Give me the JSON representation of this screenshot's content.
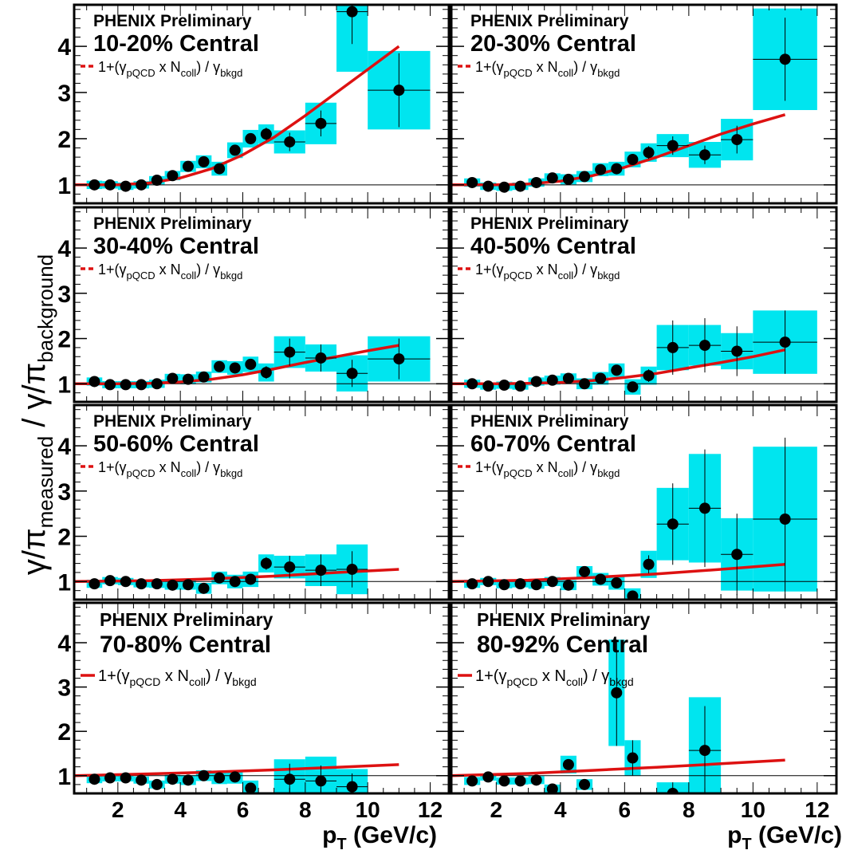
{
  "figure": {
    "ylabel_parts": [
      "γ/π",
      "measured",
      " / ",
      "γ/π",
      "background"
    ],
    "xlabel_parts": [
      "p",
      "T",
      " (GeV/c)"
    ],
    "x_ticks": [
      2,
      4,
      6,
      8,
      10,
      12
    ],
    "y_ticks": [
      1,
      2,
      3,
      4
    ],
    "legend_parts": [
      "1+(γ",
      "pQCD",
      " x N",
      "coll",
      ") / γ",
      "bkgd"
    ],
    "label_line1": "PHENIX Preliminary",
    "colors": {
      "data": "#000000",
      "systematic_box": "#00e5ef",
      "fit": "#dd1111",
      "unity_line": "#000000"
    }
  },
  "chart_data": [
    {
      "type": "scatter",
      "panel_title": "10-20% Central",
      "xlim": [
        0.6,
        12.6
      ],
      "ylim": [
        0.6,
        4.9
      ],
      "points": [
        [
          1.25,
          1.0,
          0.07,
          0.09
        ],
        [
          1.75,
          1.0,
          0.06,
          0.08
        ],
        [
          2.25,
          0.97,
          0.06,
          0.08
        ],
        [
          2.75,
          1.0,
          0.06,
          0.08
        ],
        [
          3.25,
          1.1,
          0.07,
          0.09
        ],
        [
          3.75,
          1.2,
          0.08,
          0.1
        ],
        [
          4.25,
          1.4,
          0.08,
          0.12
        ],
        [
          4.75,
          1.5,
          0.09,
          0.14
        ],
        [
          5.25,
          1.35,
          0.1,
          0.15
        ],
        [
          5.75,
          1.75,
          0.11,
          0.17
        ],
        [
          6.25,
          2.0,
          0.12,
          0.19
        ],
        [
          6.75,
          2.1,
          0.14,
          0.21
        ],
        [
          7.5,
          1.93,
          0.2,
          0.25
        ],
        [
          8.5,
          2.33,
          0.28,
          0.45
        ],
        [
          9.5,
          4.75,
          0.7,
          1.3
        ],
        [
          11.0,
          3.05,
          0.8,
          0.85
        ]
      ],
      "fit": [
        [
          0.6,
          1.0
        ],
        [
          2.0,
          1.0
        ],
        [
          3.0,
          1.04
        ],
        [
          4.0,
          1.15
        ],
        [
          5.0,
          1.35
        ],
        [
          6.0,
          1.65
        ],
        [
          7.0,
          2.03
        ],
        [
          8.0,
          2.5
        ],
        [
          9.0,
          3.0
        ],
        [
          10.0,
          3.5
        ],
        [
          11.0,
          4.0
        ]
      ]
    },
    {
      "type": "scatter",
      "panel_title": "20-30% Central",
      "xlim": [
        0.6,
        12.6
      ],
      "ylim": [
        0.6,
        4.9
      ],
      "points": [
        [
          1.25,
          1.05,
          0.07,
          0.09
        ],
        [
          1.75,
          0.97,
          0.06,
          0.08
        ],
        [
          2.25,
          0.95,
          0.06,
          0.08
        ],
        [
          2.75,
          0.97,
          0.06,
          0.08
        ],
        [
          3.25,
          1.05,
          0.07,
          0.09
        ],
        [
          3.75,
          1.15,
          0.08,
          0.1
        ],
        [
          4.25,
          1.12,
          0.08,
          0.11
        ],
        [
          4.75,
          1.18,
          0.09,
          0.12
        ],
        [
          5.25,
          1.33,
          0.1,
          0.14
        ],
        [
          5.75,
          1.35,
          0.11,
          0.15
        ],
        [
          6.25,
          1.55,
          0.12,
          0.17
        ],
        [
          6.75,
          1.7,
          0.14,
          0.2
        ],
        [
          7.5,
          1.85,
          0.2,
          0.25
        ],
        [
          8.5,
          1.65,
          0.2,
          0.28
        ],
        [
          9.5,
          1.98,
          0.3,
          0.45
        ],
        [
          11.0,
          3.72,
          0.9,
          1.1
        ]
      ],
      "fit": [
        [
          0.6,
          1.0
        ],
        [
          2.0,
          1.0
        ],
        [
          3.0,
          1.02
        ],
        [
          4.0,
          1.08
        ],
        [
          5.0,
          1.2
        ],
        [
          6.0,
          1.38
        ],
        [
          7.0,
          1.6
        ],
        [
          8.0,
          1.85
        ],
        [
          9.0,
          2.1
        ],
        [
          10.0,
          2.32
        ],
        [
          11.0,
          2.52
        ]
      ]
    },
    {
      "type": "scatter",
      "panel_title": "30-40% Central",
      "xlim": [
        0.6,
        12.6
      ],
      "ylim": [
        0.6,
        4.9
      ],
      "points": [
        [
          1.25,
          1.05,
          0.07,
          0.09
        ],
        [
          1.75,
          0.98,
          0.06,
          0.08
        ],
        [
          2.25,
          0.98,
          0.06,
          0.08
        ],
        [
          2.75,
          0.98,
          0.06,
          0.08
        ],
        [
          3.25,
          1.0,
          0.07,
          0.09
        ],
        [
          3.75,
          1.12,
          0.08,
          0.1
        ],
        [
          4.25,
          1.1,
          0.08,
          0.11
        ],
        [
          4.75,
          1.15,
          0.09,
          0.12
        ],
        [
          5.25,
          1.38,
          0.1,
          0.14
        ],
        [
          5.75,
          1.35,
          0.11,
          0.15
        ],
        [
          6.25,
          1.43,
          0.12,
          0.17
        ],
        [
          6.75,
          1.25,
          0.14,
          0.2
        ],
        [
          7.5,
          1.7,
          0.3,
          0.35
        ],
        [
          8.5,
          1.57,
          0.3,
          0.3
        ],
        [
          9.5,
          1.23,
          0.3,
          0.4
        ],
        [
          11.0,
          1.55,
          0.45,
          0.5
        ]
      ],
      "fit": [
        [
          0.6,
          1.0
        ],
        [
          2.0,
          1.0
        ],
        [
          3.0,
          1.01
        ],
        [
          4.0,
          1.04
        ],
        [
          5.0,
          1.1
        ],
        [
          6.0,
          1.2
        ],
        [
          7.0,
          1.33
        ],
        [
          8.0,
          1.47
        ],
        [
          9.0,
          1.6
        ],
        [
          10.0,
          1.73
        ],
        [
          11.0,
          1.85
        ]
      ]
    },
    {
      "type": "scatter",
      "panel_title": "40-50% Central",
      "xlim": [
        0.6,
        12.6
      ],
      "ylim": [
        0.6,
        4.9
      ],
      "points": [
        [
          1.25,
          1.0,
          0.07,
          0.09
        ],
        [
          1.75,
          0.95,
          0.06,
          0.08
        ],
        [
          2.25,
          0.97,
          0.06,
          0.08
        ],
        [
          2.75,
          0.95,
          0.06,
          0.08
        ],
        [
          3.25,
          1.05,
          0.07,
          0.09
        ],
        [
          3.75,
          1.08,
          0.08,
          0.1
        ],
        [
          4.25,
          1.12,
          0.08,
          0.11
        ],
        [
          4.75,
          1.0,
          0.09,
          0.12
        ],
        [
          5.25,
          1.12,
          0.1,
          0.14
        ],
        [
          5.75,
          1.3,
          0.11,
          0.15
        ],
        [
          6.25,
          0.93,
          0.12,
          0.17
        ],
        [
          6.75,
          1.18,
          0.14,
          0.2
        ],
        [
          7.5,
          1.8,
          0.6,
          0.5
        ],
        [
          8.5,
          1.85,
          0.6,
          0.45
        ],
        [
          9.5,
          1.72,
          0.55,
          0.4
        ],
        [
          11.0,
          1.92,
          0.7,
          0.7
        ]
      ],
      "fit": [
        [
          0.6,
          1.0
        ],
        [
          2.0,
          1.0
        ],
        [
          3.0,
          1.01
        ],
        [
          4.0,
          1.03
        ],
        [
          5.0,
          1.07
        ],
        [
          6.0,
          1.14
        ],
        [
          7.0,
          1.23
        ],
        [
          8.0,
          1.35
        ],
        [
          9.0,
          1.47
        ],
        [
          10.0,
          1.6
        ],
        [
          11.0,
          1.75
        ]
      ]
    },
    {
      "type": "scatter",
      "panel_title": "50-60% Central",
      "xlim": [
        0.6,
        12.6
      ],
      "ylim": [
        0.6,
        4.9
      ],
      "points": [
        [
          1.25,
          0.95,
          0.07,
          0.09
        ],
        [
          1.75,
          1.02,
          0.06,
          0.08
        ],
        [
          2.25,
          1.0,
          0.06,
          0.08
        ],
        [
          2.75,
          0.95,
          0.06,
          0.08
        ],
        [
          3.25,
          0.95,
          0.07,
          0.09
        ],
        [
          3.75,
          0.92,
          0.08,
          0.1
        ],
        [
          4.25,
          0.93,
          0.08,
          0.11
        ],
        [
          4.75,
          0.85,
          0.09,
          0.12
        ],
        [
          5.25,
          1.08,
          0.1,
          0.14
        ],
        [
          5.75,
          1.0,
          0.11,
          0.15
        ],
        [
          6.25,
          1.05,
          0.12,
          0.17
        ],
        [
          6.75,
          1.4,
          0.14,
          0.2
        ],
        [
          7.5,
          1.32,
          0.25,
          0.25
        ],
        [
          8.5,
          1.25,
          0.35,
          0.35
        ],
        [
          9.5,
          1.27,
          0.4,
          0.55
        ]
      ],
      "fit": [
        [
          0.6,
          1.0
        ],
        [
          3.0,
          1.02
        ],
        [
          5.0,
          1.06
        ],
        [
          7.0,
          1.12
        ],
        [
          9.0,
          1.2
        ],
        [
          11.0,
          1.27
        ]
      ]
    },
    {
      "type": "scatter",
      "panel_title": "60-70% Central",
      "xlim": [
        0.6,
        12.6
      ],
      "ylim": [
        0.6,
        4.9
      ],
      "points": [
        [
          1.25,
          0.95,
          0.07,
          0.09
        ],
        [
          1.75,
          1.0,
          0.06,
          0.08
        ],
        [
          2.25,
          0.93,
          0.06,
          0.08
        ],
        [
          2.75,
          0.95,
          0.06,
          0.08
        ],
        [
          3.25,
          0.93,
          0.07,
          0.09
        ],
        [
          3.75,
          1.0,
          0.08,
          0.1
        ],
        [
          4.25,
          0.92,
          0.08,
          0.11
        ],
        [
          4.75,
          1.22,
          0.09,
          0.12
        ],
        [
          5.25,
          1.05,
          0.1,
          0.14
        ],
        [
          5.75,
          0.97,
          0.11,
          0.15
        ],
        [
          6.25,
          0.68,
          0.12,
          0.17
        ],
        [
          6.75,
          1.38,
          0.2,
          0.3
        ],
        [
          7.5,
          2.27,
          0.9,
          0.8
        ],
        [
          8.5,
          2.62,
          1.3,
          1.2
        ],
        [
          9.5,
          1.6,
          0.9,
          0.8
        ],
        [
          11.0,
          2.38,
          1.8,
          1.6
        ]
      ],
      "fit": [
        [
          0.6,
          1.0
        ],
        [
          3.0,
          1.03
        ],
        [
          5.0,
          1.09
        ],
        [
          7.0,
          1.17
        ],
        [
          9.0,
          1.27
        ],
        [
          11.0,
          1.38
        ]
      ]
    },
    {
      "type": "scatter",
      "panel_title": "70-80% Central",
      "xlim": [
        0.6,
        12.6
      ],
      "ylim": [
        0.6,
        4.9
      ],
      "points": [
        [
          1.25,
          0.92,
          0.07,
          0.09
        ],
        [
          1.75,
          0.95,
          0.06,
          0.08
        ],
        [
          2.25,
          0.95,
          0.06,
          0.08
        ],
        [
          2.75,
          0.9,
          0.06,
          0.08
        ],
        [
          3.25,
          0.8,
          0.07,
          0.09
        ],
        [
          3.75,
          0.92,
          0.08,
          0.1
        ],
        [
          4.25,
          0.9,
          0.08,
          0.11
        ],
        [
          4.75,
          1.0,
          0.09,
          0.12
        ],
        [
          5.25,
          0.95,
          0.1,
          0.14
        ],
        [
          5.75,
          0.97,
          0.11,
          0.15
        ],
        [
          6.25,
          0.72,
          0.12,
          0.17
        ],
        [
          7.5,
          0.92,
          0.35,
          0.45
        ],
        [
          8.5,
          0.88,
          0.35,
          0.55
        ],
        [
          9.5,
          0.75,
          0.3,
          0.4
        ]
      ],
      "fit": [
        [
          0.6,
          1.0
        ],
        [
          3.0,
          1.04
        ],
        [
          5.0,
          1.08
        ],
        [
          7.0,
          1.13
        ],
        [
          9.0,
          1.19
        ],
        [
          11.0,
          1.25
        ]
      ]
    },
    {
      "type": "scatter",
      "panel_title": "80-92% Central",
      "xlim": [
        0.6,
        12.6
      ],
      "ylim": [
        0.6,
        4.9
      ],
      "points": [
        [
          1.25,
          0.88,
          0.07,
          0.09
        ],
        [
          1.75,
          0.97,
          0.06,
          0.08
        ],
        [
          2.25,
          0.88,
          0.06,
          0.08
        ],
        [
          2.75,
          0.88,
          0.06,
          0.08
        ],
        [
          3.25,
          0.9,
          0.07,
          0.09
        ],
        [
          3.75,
          0.7,
          0.08,
          0.1
        ],
        [
          4.25,
          1.25,
          0.1,
          0.2
        ],
        [
          4.75,
          0.8,
          0.09,
          0.12
        ],
        [
          5.75,
          2.87,
          1.2,
          1.2
        ],
        [
          6.25,
          1.4,
          0.4,
          0.4
        ],
        [
          7.5,
          0.6,
          0.25,
          0.25
        ],
        [
          8.5,
          1.57,
          1.0,
          1.2
        ]
      ],
      "fit": [
        [
          0.6,
          1.0
        ],
        [
          3.0,
          1.05
        ],
        [
          5.0,
          1.12
        ],
        [
          7.0,
          1.19
        ],
        [
          9.0,
          1.27
        ],
        [
          11.0,
          1.35
        ]
      ]
    }
  ]
}
